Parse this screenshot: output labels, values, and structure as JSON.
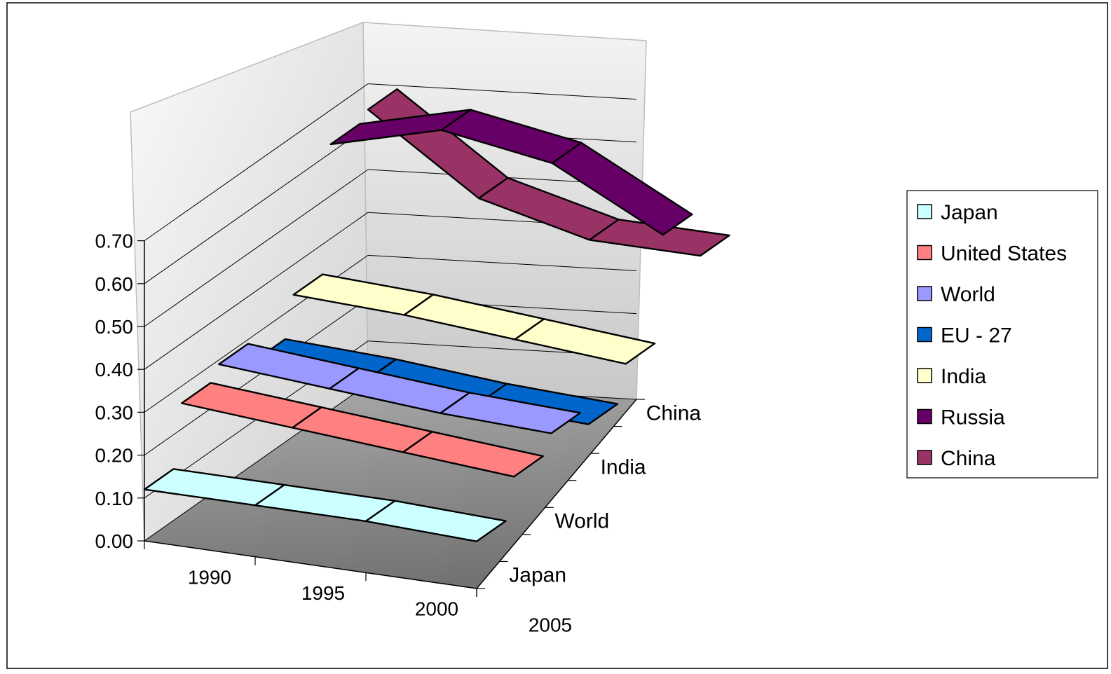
{
  "chart_data": {
    "type": "line",
    "subtype": "3d-ribbon",
    "title": "",
    "xlabel": "",
    "ylabel": "",
    "ylim": [
      0,
      0.7
    ],
    "y_ticks": [
      "0.00",
      "0.10",
      "0.20",
      "0.30",
      "0.40",
      "0.50",
      "0.60",
      "0.70"
    ],
    "x_ticks": [
      "1990",
      "1995",
      "2000",
      "2005"
    ],
    "depth_ticks": [
      "Japan",
      "World",
      "India",
      "China"
    ],
    "grid": true,
    "legend_position": "right",
    "series": [
      {
        "name": "Japan",
        "color": "#ccffff",
        "values": [
          0.12,
          0.12,
          0.12,
          0.11
        ]
      },
      {
        "name": "United States",
        "color": "#ff8080",
        "values": [
          0.26,
          0.24,
          0.22,
          0.2
        ]
      },
      {
        "name": "World",
        "color": "#9999ff",
        "values": [
          0.29,
          0.27,
          0.25,
          0.24
        ]
      },
      {
        "name": "EU - 27",
        "color": "#0066cc",
        "values": [
          0.24,
          0.23,
          0.21,
          0.2
        ]
      },
      {
        "name": "India",
        "color": "#ffffcc",
        "values": [
          0.33,
          0.32,
          0.3,
          0.28
        ]
      },
      {
        "name": "Russia",
        "color": "#660066",
        "values": [
          0.62,
          0.69,
          0.65,
          0.52
        ]
      },
      {
        "name": "China",
        "color": "#993366",
        "values": [
          0.64,
          0.47,
          0.41,
          0.41
        ]
      }
    ]
  }
}
